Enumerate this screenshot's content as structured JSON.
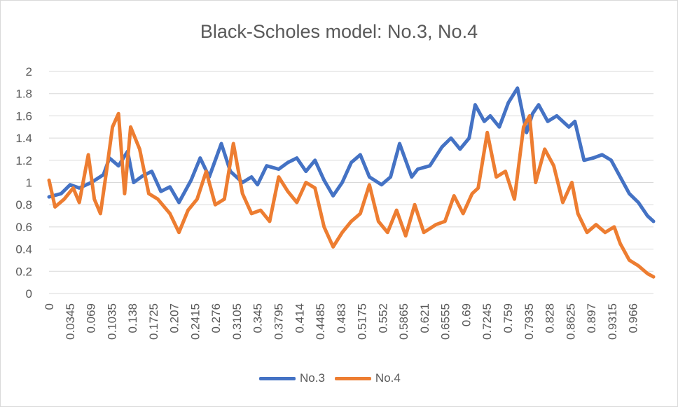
{
  "chart_data": {
    "type": "line",
    "title": "Black-Scholes model: No.3, No.4",
    "ylim": [
      0,
      2
    ],
    "yticks": [
      "0",
      "0.2",
      "0.4",
      "0.6",
      "0.8",
      "1",
      "1.2",
      "1.4",
      "1.6",
      "1.8",
      "2"
    ],
    "xlim": [
      0,
      1
    ],
    "xticks": [
      "0",
      "0.0345",
      "0.069",
      "0.1035",
      "0.138",
      "0.1725",
      "0.207",
      "0.2415",
      "0.276",
      "0.3105",
      "0.345",
      "0.3795",
      "0.414",
      "0.4485",
      "0.483",
      "0.5175",
      "0.552",
      "0.5865",
      "0.621",
      "0.6555",
      "0.69",
      "0.7245",
      "0.759",
      "0.7935",
      "0.828",
      "0.8625",
      "0.897",
      "0.9315",
      "0.966"
    ],
    "grid": true,
    "legend_position": "bottom",
    "series": [
      {
        "name": "No.3",
        "color": "#4472C4",
        "x": [
          0,
          0.02,
          0.035,
          0.05,
          0.07,
          0.09,
          0.1,
          0.115,
          0.13,
          0.14,
          0.155,
          0.17,
          0.185,
          0.2,
          0.215,
          0.235,
          0.25,
          0.265,
          0.285,
          0.3,
          0.32,
          0.335,
          0.345,
          0.36,
          0.38,
          0.395,
          0.41,
          0.425,
          0.44,
          0.455,
          0.47,
          0.485,
          0.5,
          0.515,
          0.53,
          0.55,
          0.565,
          0.58,
          0.6,
          0.61,
          0.63,
          0.65,
          0.665,
          0.68,
          0.695,
          0.705,
          0.72,
          0.73,
          0.745,
          0.76,
          0.775,
          0.79,
          0.8,
          0.81,
          0.825,
          0.84,
          0.86,
          0.87,
          0.885,
          0.9,
          0.915,
          0.93,
          0.945,
          0.96,
          0.975,
          0.99,
          1.0
        ],
        "values": [
          0.87,
          0.9,
          0.98,
          0.95,
          1.0,
          1.07,
          1.22,
          1.15,
          1.28,
          1.0,
          1.06,
          1.1,
          0.92,
          0.96,
          0.82,
          1.02,
          1.22,
          1.05,
          1.35,
          1.1,
          1.0,
          1.05,
          0.98,
          1.15,
          1.12,
          1.18,
          1.22,
          1.1,
          1.2,
          1.02,
          0.88,
          1.0,
          1.18,
          1.25,
          1.05,
          0.98,
          1.05,
          1.35,
          1.05,
          1.12,
          1.15,
          1.32,
          1.4,
          1.3,
          1.4,
          1.7,
          1.55,
          1.6,
          1.5,
          1.72,
          1.85,
          1.45,
          1.62,
          1.7,
          1.55,
          1.6,
          1.5,
          1.55,
          1.2,
          1.22,
          1.25,
          1.2,
          1.05,
          0.9,
          0.82,
          0.7,
          0.65
        ]
      },
      {
        "name": "No.4",
        "color": "#ED7D31",
        "x": [
          0,
          0.01,
          0.025,
          0.04,
          0.05,
          0.065,
          0.075,
          0.085,
          0.095,
          0.105,
          0.115,
          0.125,
          0.135,
          0.15,
          0.165,
          0.18,
          0.2,
          0.215,
          0.23,
          0.245,
          0.26,
          0.275,
          0.29,
          0.305,
          0.32,
          0.335,
          0.35,
          0.365,
          0.38,
          0.395,
          0.41,
          0.425,
          0.44,
          0.455,
          0.47,
          0.485,
          0.5,
          0.515,
          0.53,
          0.545,
          0.56,
          0.575,
          0.59,
          0.605,
          0.62,
          0.64,
          0.655,
          0.67,
          0.685,
          0.7,
          0.71,
          0.725,
          0.74,
          0.755,
          0.77,
          0.785,
          0.795,
          0.805,
          0.82,
          0.835,
          0.85,
          0.865,
          0.875,
          0.89,
          0.905,
          0.92,
          0.935,
          0.945,
          0.96,
          0.975,
          0.99,
          1.0
        ],
        "values": [
          1.02,
          0.78,
          0.85,
          0.95,
          0.82,
          1.25,
          0.85,
          0.72,
          1.1,
          1.5,
          1.62,
          0.9,
          1.5,
          1.3,
          0.9,
          0.85,
          0.72,
          0.55,
          0.75,
          0.85,
          1.1,
          0.8,
          0.85,
          1.35,
          0.9,
          0.72,
          0.75,
          0.65,
          1.05,
          0.92,
          0.82,
          1.0,
          0.95,
          0.6,
          0.42,
          0.55,
          0.65,
          0.72,
          0.98,
          0.65,
          0.55,
          0.75,
          0.52,
          0.8,
          0.55,
          0.62,
          0.65,
          0.88,
          0.72,
          0.9,
          0.95,
          1.45,
          1.05,
          1.1,
          0.85,
          1.5,
          1.6,
          1.0,
          1.3,
          1.15,
          0.82,
          1.0,
          0.72,
          0.55,
          0.62,
          0.55,
          0.6,
          0.45,
          0.3,
          0.25,
          0.18,
          0.15
        ]
      }
    ]
  }
}
